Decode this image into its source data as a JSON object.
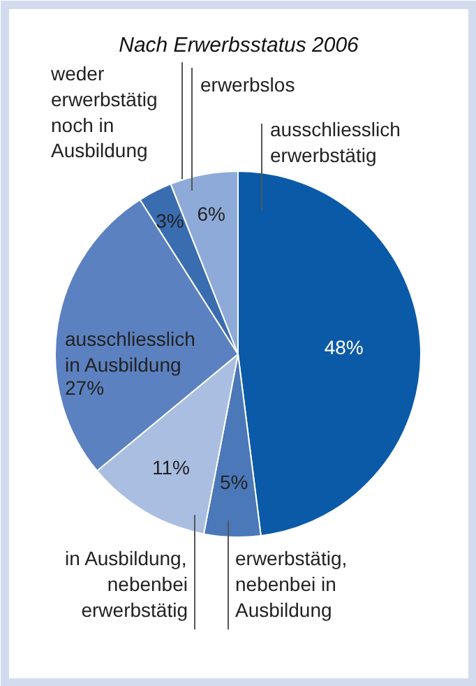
{
  "chart_data": {
    "type": "pie",
    "title": "Nach Erwerbsstatus 2006",
    "categories": [
      "ausschliesslich\nerwerbstätig",
      "erwerbstätig,\nnebenbei in\nAusbildung",
      "in Ausbildung,\nnebenbei\nerwerbstätig",
      "ausschliesslich\nin Ausbildung",
      "weder\nerwerbstätig\nnoch in\nAusbildung",
      "erwerbslos"
    ],
    "values": [
      48,
      5,
      11,
      27,
      3,
      6
    ],
    "value_labels": [
      "48%",
      "5%",
      "11%",
      "27%",
      "3%",
      "6%"
    ],
    "colors": [
      "#0b5aa8",
      "#4a78b8",
      "#a9bee1",
      "#5b81c0",
      "#3a6cb0",
      "#8eaad9"
    ]
  }
}
